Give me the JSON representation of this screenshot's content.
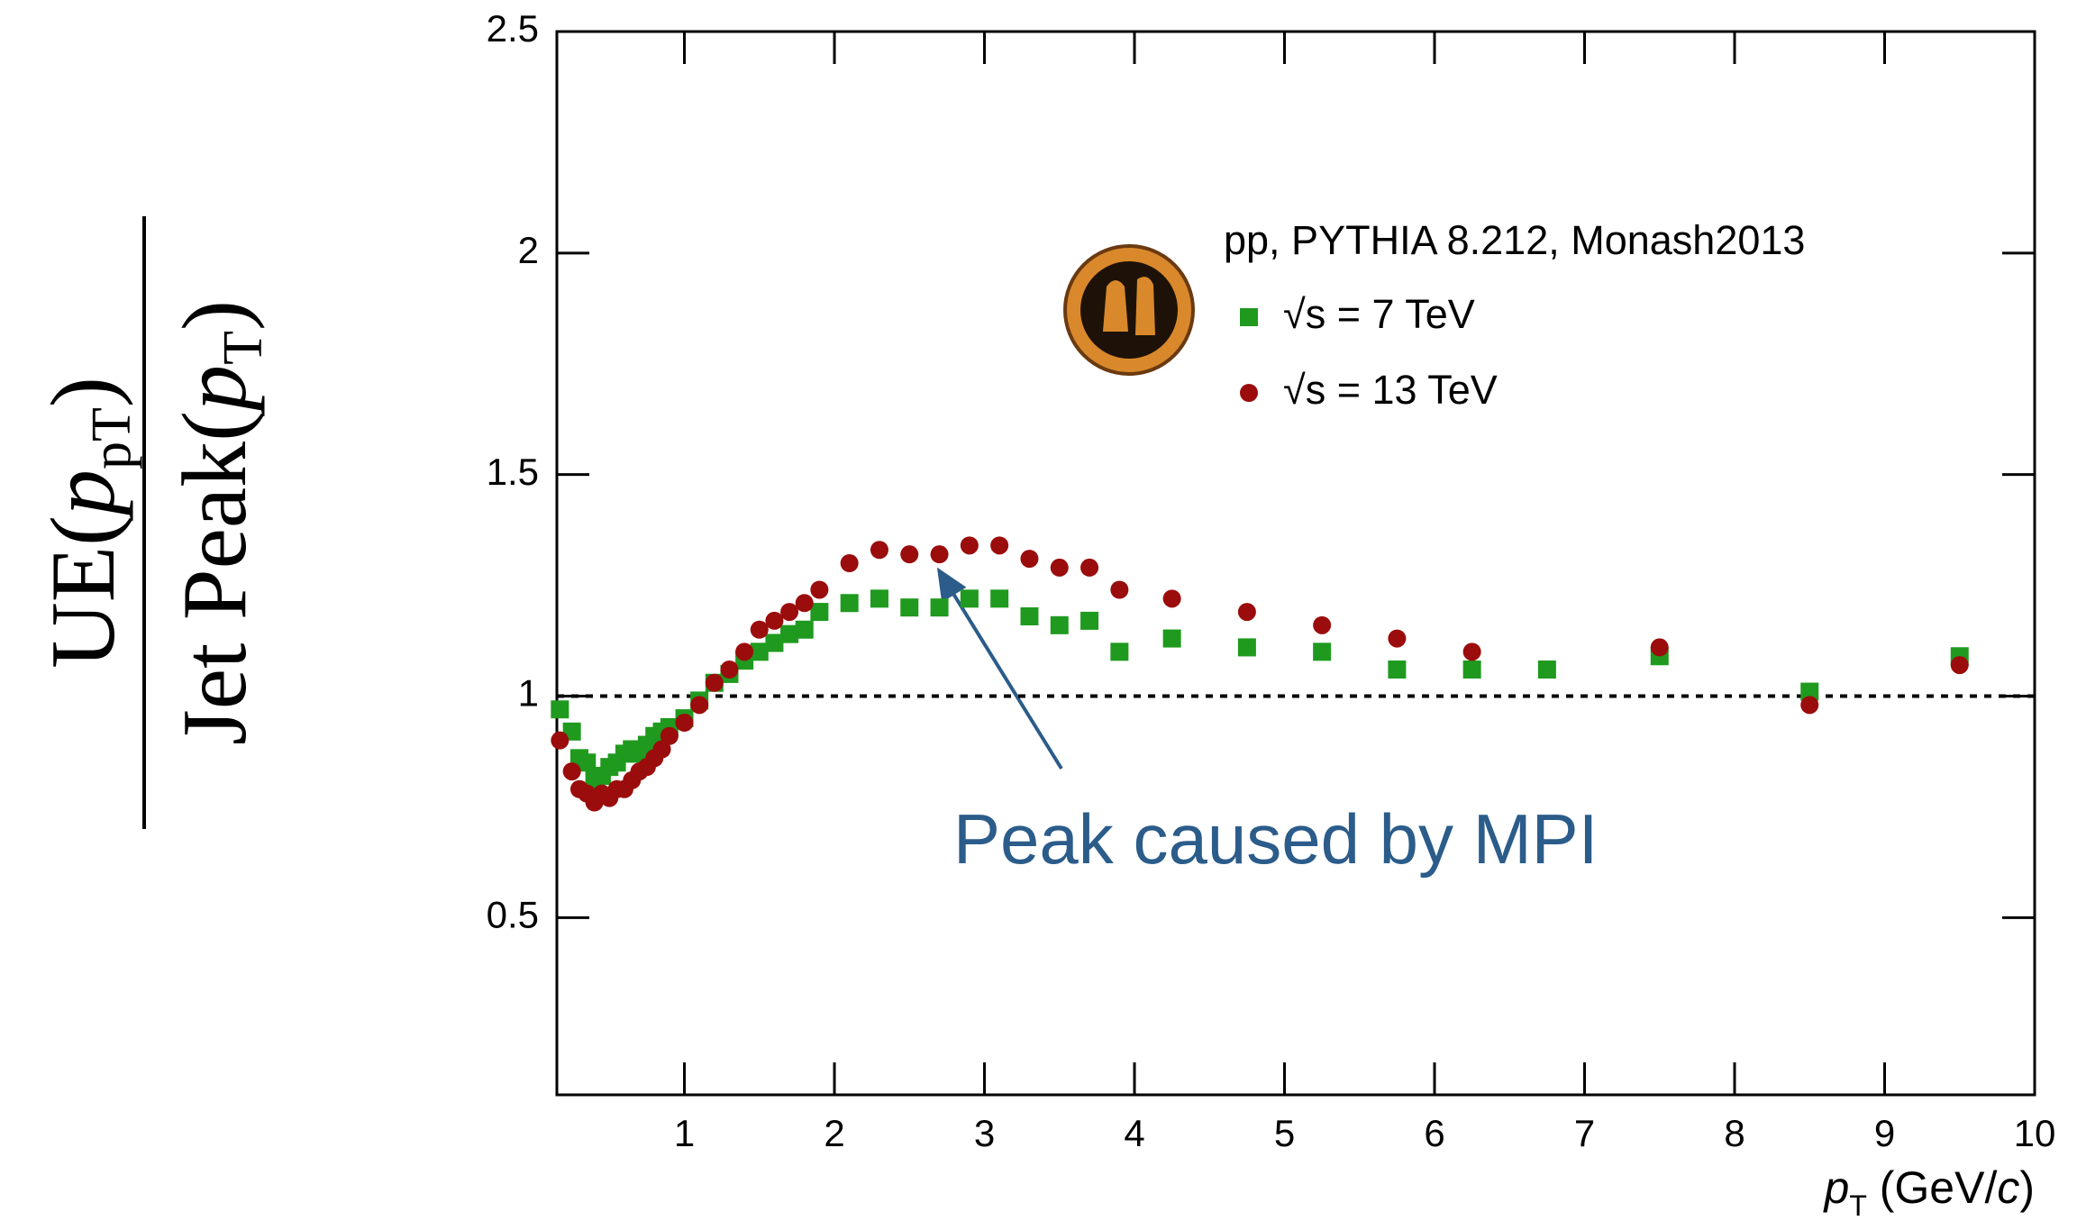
{
  "chart_data": {
    "type": "scatter",
    "y_label": {
      "numerator": "UE(",
      "numerator_var": "p",
      "numerator_sub": "pT",
      "numerator_end": ")",
      "denominator": "Jet Peak(",
      "denominator_var": "p",
      "denominator_sub": "T",
      "denominator_end": ")"
    },
    "x_label": {
      "var": "p",
      "sub": "T",
      "unit_start": " (GeV/",
      "unit_var": "c",
      "unit_end": ")"
    },
    "legend_title": "pp, PYTHIA 8.212, Monash2013",
    "annotation": "Peak caused by MPI",
    "reference_line": 1,
    "x": [
      0.17,
      0.25,
      0.3,
      0.35,
      0.4,
      0.45,
      0.5,
      0.55,
      0.6,
      0.65,
      0.7,
      0.75,
      0.8,
      0.85,
      0.9,
      1.0,
      1.1,
      1.2,
      1.3,
      1.4,
      1.5,
      1.6,
      1.7,
      1.8,
      1.9,
      2.1,
      2.3,
      2.5,
      2.7,
      2.9,
      3.1,
      3.3,
      3.5,
      3.7,
      3.9,
      4.25,
      4.75,
      5.25,
      5.75,
      6.25,
      6.75,
      7.5,
      8.5,
      9.5
    ],
    "series": [
      {
        "name": "√s = 7 TeV",
        "color": "#1f9a1f",
        "marker": "square",
        "values": [
          0.97,
          0.92,
          0.86,
          0.85,
          0.81,
          0.82,
          0.84,
          0.85,
          0.87,
          0.88,
          0.87,
          0.89,
          0.91,
          0.92,
          0.93,
          0.95,
          0.99,
          1.03,
          1.05,
          1.08,
          1.1,
          1.12,
          1.14,
          1.15,
          1.19,
          1.21,
          1.22,
          1.2,
          1.2,
          1.22,
          1.22,
          1.18,
          1.16,
          1.17,
          1.1,
          1.13,
          1.11,
          1.1,
          1.06,
          1.06,
          1.06,
          1.09,
          1.01,
          1.09
        ]
      },
      {
        "name": "√s = 13 TeV",
        "color": "#9b0c0c",
        "marker": "circle",
        "values": [
          0.9,
          0.83,
          0.79,
          0.78,
          0.76,
          0.78,
          0.77,
          0.79,
          0.79,
          0.81,
          0.83,
          0.84,
          0.86,
          0.88,
          0.91,
          0.94,
          0.98,
          1.03,
          1.06,
          1.1,
          1.15,
          1.17,
          1.19,
          1.21,
          1.24,
          1.3,
          1.33,
          1.32,
          1.32,
          1.34,
          1.34,
          1.31,
          1.29,
          1.29,
          1.24,
          1.22,
          1.19,
          1.16,
          1.13,
          1.1,
          null,
          1.11,
          0.98,
          1.07
        ]
      }
    ],
    "xlim": [
      0.15,
      10
    ],
    "ylim": [
      0.1,
      2.5
    ],
    "xticks": [
      1,
      2,
      3,
      4,
      5,
      6,
      7,
      8,
      9,
      10
    ],
    "yticks": [
      0.5,
      1,
      1.5,
      2,
      2.5
    ]
  }
}
